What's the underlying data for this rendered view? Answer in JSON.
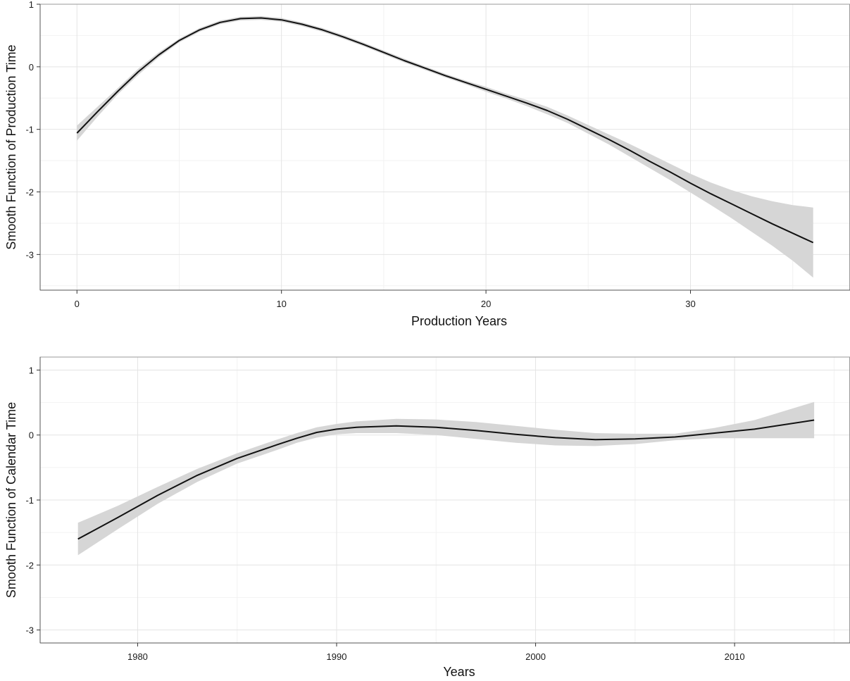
{
  "chart_data": [
    {
      "type": "line",
      "title": "",
      "xlabel": "Production Years",
      "ylabel": "Smooth Function of Production Time",
      "xlim": [
        -1.8,
        37.8
      ],
      "ylim": [
        -3.57,
        1.0
      ],
      "x_ticks": [
        0,
        10,
        20,
        30
      ],
      "x_tick_labels": [
        "0",
        "10",
        "20",
        "30"
      ],
      "y_ticks": [
        -3,
        -2,
        -1,
        0,
        1
      ],
      "y_tick_labels": [
        "-3",
        "-2",
        "-1",
        "0",
        "1"
      ],
      "grid": true,
      "legend": "none",
      "line_color": "#111111",
      "band_color": "#d6d6d6",
      "series": [
        {
          "x": [
            0,
            1,
            2,
            3,
            4,
            5,
            6,
            7,
            8,
            9,
            10,
            11,
            12,
            13,
            14,
            15,
            16,
            17,
            18,
            19,
            20,
            21,
            22,
            23,
            24,
            25,
            26,
            27,
            28,
            29,
            30,
            31,
            32,
            33,
            34,
            35,
            36
          ],
          "y": [
            -1.06,
            -0.72,
            -0.39,
            -0.08,
            0.19,
            0.42,
            0.59,
            0.71,
            0.77,
            0.78,
            0.75,
            0.68,
            0.59,
            0.48,
            0.36,
            0.23,
            0.1,
            -0.02,
            -0.14,
            -0.25,
            -0.36,
            -0.47,
            -0.58,
            -0.7,
            -0.84,
            -1.0,
            -1.16,
            -1.33,
            -1.51,
            -1.68,
            -1.86,
            -2.03,
            -2.19,
            -2.35,
            -2.51,
            -2.66,
            -2.81
          ],
          "lower": [
            -1.18,
            -0.8,
            -0.44,
            -0.13,
            0.15,
            0.39,
            0.56,
            0.68,
            0.74,
            0.75,
            0.72,
            0.65,
            0.56,
            0.45,
            0.33,
            0.2,
            0.07,
            -0.05,
            -0.17,
            -0.28,
            -0.4,
            -0.51,
            -0.63,
            -0.76,
            -0.9,
            -1.07,
            -1.24,
            -1.43,
            -1.62,
            -1.81,
            -2.01,
            -2.21,
            -2.42,
            -2.64,
            -2.86,
            -3.1,
            -3.37
          ],
          "upper": [
            -0.94,
            -0.64,
            -0.34,
            -0.03,
            0.23,
            0.45,
            0.62,
            0.74,
            0.8,
            0.81,
            0.78,
            0.71,
            0.62,
            0.51,
            0.39,
            0.26,
            0.13,
            0.01,
            -0.11,
            -0.22,
            -0.32,
            -0.43,
            -0.53,
            -0.64,
            -0.78,
            -0.93,
            -1.08,
            -1.23,
            -1.39,
            -1.55,
            -1.71,
            -1.85,
            -1.97,
            -2.07,
            -2.15,
            -2.21,
            -2.25
          ]
        }
      ]
    },
    {
      "type": "line",
      "title": "",
      "xlabel": "Years",
      "ylabel": "Smooth Function of Calendar Time",
      "xlim": [
        1975.1,
        2015.8
      ],
      "ylim": [
        -3.2,
        1.2
      ],
      "x_ticks": [
        1980,
        1990,
        2000,
        2010
      ],
      "x_tick_labels": [
        "1980",
        "1990",
        "2000",
        "2010"
      ],
      "y_ticks": [
        -3,
        -2,
        -1,
        0,
        1
      ],
      "y_tick_labels": [
        "-3",
        "-2",
        "-1",
        "0",
        "1"
      ],
      "grid": true,
      "legend": "none",
      "line_color": "#111111",
      "band_color": "#d6d6d6",
      "series": [
        {
          "x": [
            1977,
            1979,
            1981,
            1983,
            1985,
            1987,
            1988,
            1989,
            1990,
            1991,
            1993,
            1995,
            1997,
            1999,
            2001,
            2003,
            2005,
            2007,
            2009,
            2011,
            2014
          ],
          "y": [
            -1.6,
            -1.27,
            -0.93,
            -0.62,
            -0.36,
            -0.15,
            -0.05,
            0.04,
            0.09,
            0.12,
            0.14,
            0.12,
            0.07,
            0.01,
            -0.04,
            -0.07,
            -0.06,
            -0.03,
            0.03,
            0.09,
            0.23
          ],
          "lower": [
            -1.85,
            -1.45,
            -1.06,
            -0.72,
            -0.44,
            -0.23,
            -0.12,
            -0.04,
            0.01,
            0.03,
            0.03,
            0.0,
            -0.06,
            -0.12,
            -0.16,
            -0.17,
            -0.14,
            -0.08,
            -0.05,
            -0.05,
            -0.05
          ],
          "upper": [
            -1.35,
            -1.09,
            -0.8,
            -0.52,
            -0.28,
            -0.07,
            0.03,
            0.12,
            0.17,
            0.21,
            0.25,
            0.24,
            0.2,
            0.14,
            0.08,
            0.03,
            0.02,
            0.02,
            0.11,
            0.23,
            0.51
          ]
        }
      ]
    }
  ]
}
